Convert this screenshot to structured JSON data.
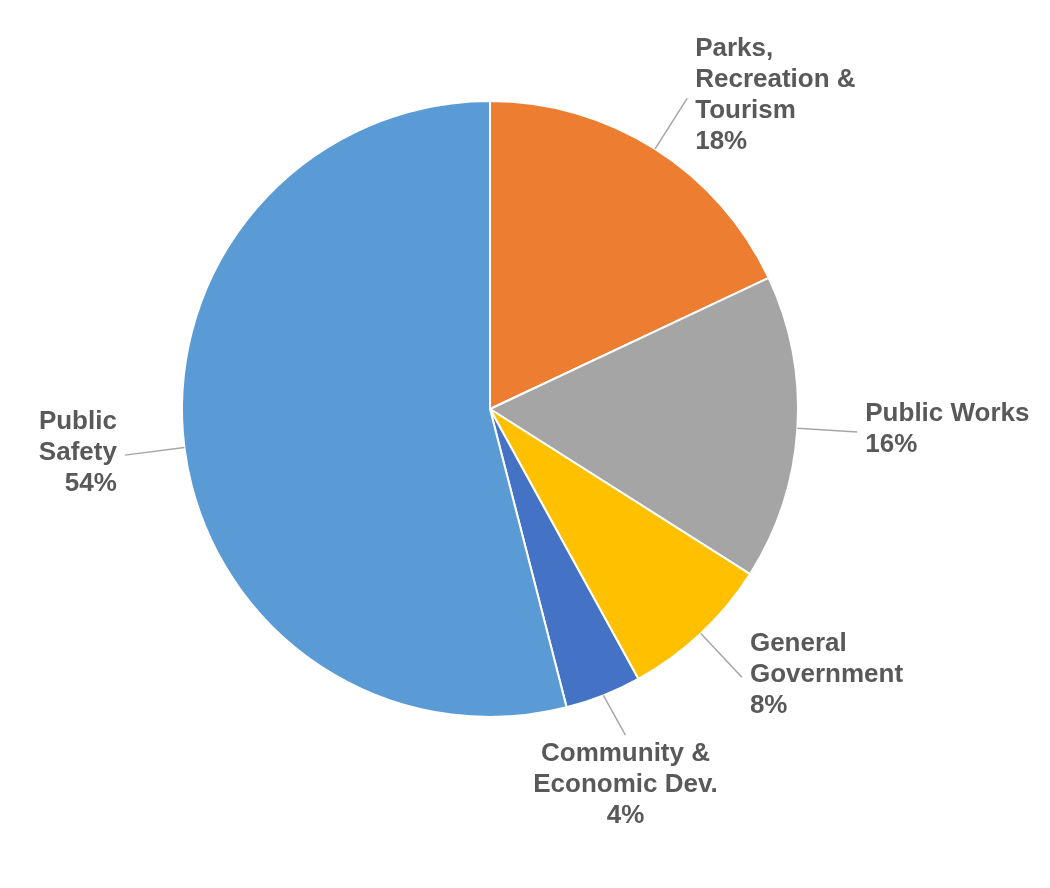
{
  "chart_data": {
    "type": "pie",
    "categories": [
      "Parks, Recreation & Tourism",
      "Public Works",
      "General Government",
      "Community & Economic Dev.",
      "Public Safety"
    ],
    "values": [
      18,
      16,
      8,
      4,
      54
    ],
    "value_labels": [
      "18%",
      "16%",
      "8%",
      "4%",
      "54%"
    ],
    "colors": [
      "#ed7d31",
      "#a5a5a5",
      "#ffc000",
      "#4472c4",
      "#5b9bd5"
    ],
    "data_labels": true
  }
}
